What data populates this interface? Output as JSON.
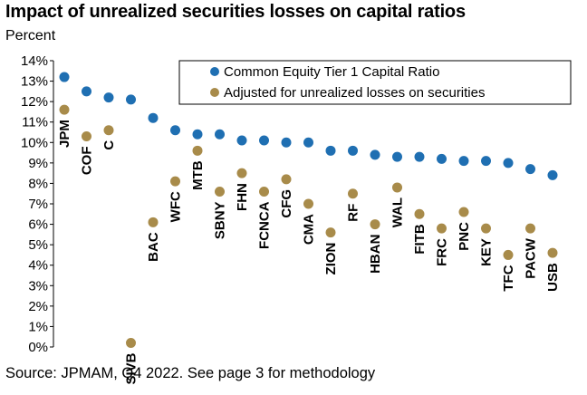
{
  "title": "Impact of unrealized securities losses on capital ratios",
  "subtitle": "Percent",
  "source": "Source: JPMAM, Q4 2022. See page 3 for methodology",
  "colors": {
    "cet1": "#1f6fb2",
    "adjusted": "#a88b4a"
  },
  "chart_data": {
    "type": "scatter",
    "categories": [
      "JPM",
      "COF",
      "C",
      "SIVB",
      "BAC",
      "WFC",
      "MTB",
      "SBNY",
      "FHN",
      "FCNCA",
      "CFG",
      "CMA",
      "ZION",
      "RF",
      "HBAN",
      "WAL",
      "FITB",
      "FRC",
      "PNC",
      "KEY",
      "TFC",
      "PACW",
      "USB"
    ],
    "series": [
      {
        "name": "Common Equity Tier 1 Capital Ratio",
        "values": [
          13.2,
          12.5,
          12.2,
          12.1,
          11.2,
          10.6,
          10.4,
          10.4,
          10.1,
          10.1,
          10.0,
          10.0,
          9.6,
          9.6,
          9.4,
          9.3,
          9.3,
          9.2,
          9.1,
          9.1,
          9.0,
          8.7,
          8.4
        ]
      },
      {
        "name": "Adjusted for unrealized losses on securities",
        "values": [
          11.6,
          10.3,
          10.6,
          0.2,
          6.1,
          8.1,
          9.6,
          7.6,
          8.5,
          7.6,
          8.2,
          7.0,
          5.6,
          7.5,
          6.0,
          7.8,
          6.5,
          5.8,
          6.6,
          5.8,
          4.5,
          5.8,
          4.6
        ]
      }
    ],
    "yticks": [
      "0%",
      "1%",
      "2%",
      "3%",
      "4%",
      "5%",
      "6%",
      "7%",
      "8%",
      "9%",
      "10%",
      "11%",
      "12%",
      "13%",
      "14%"
    ],
    "ylim": [
      0,
      14
    ],
    "legend_position": "top-right"
  }
}
